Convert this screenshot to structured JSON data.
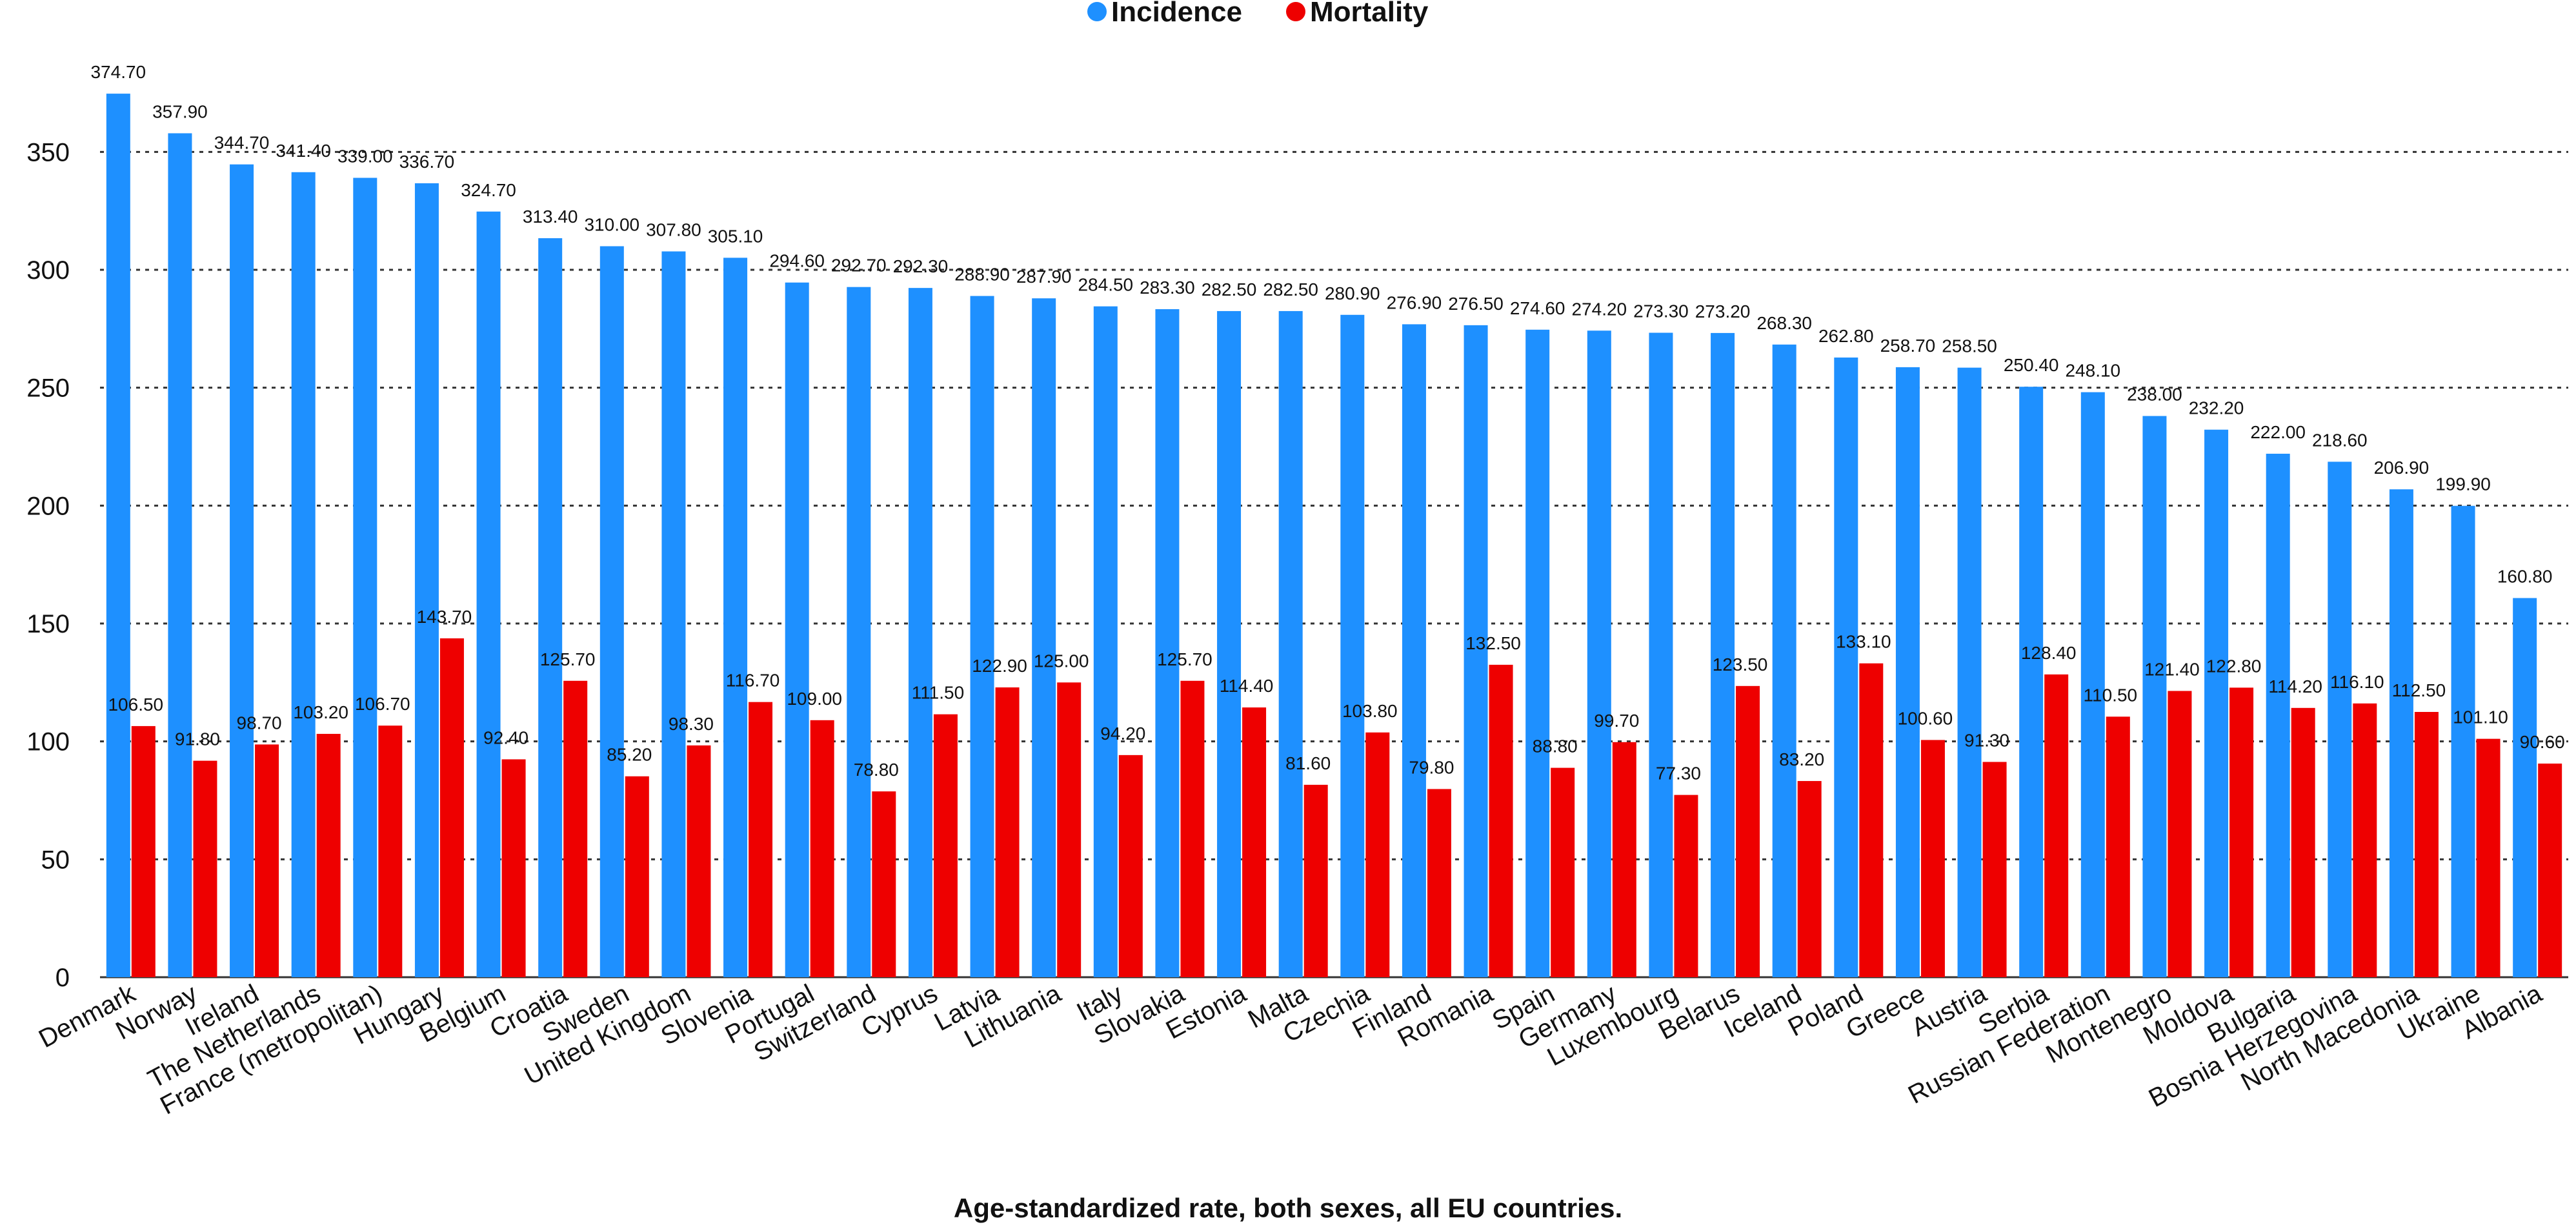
{
  "chart_data": {
    "type": "bar",
    "title": "",
    "caption": "Age-standardized rate, both sexes, all EU countries.",
    "xlabel": "",
    "ylabel": "",
    "ylim": [
      0,
      375
    ],
    "yticks": [
      0,
      50,
      100,
      150,
      200,
      250,
      300,
      350
    ],
    "grid": true,
    "legend_position": "top-center",
    "categories": [
      "Denmark",
      "Norway",
      "Ireland",
      "The Netherlands",
      "France (metropolitan)",
      "Hungary",
      "Belgium",
      "Croatia",
      "Sweden",
      "United Kingdom",
      "Slovenia",
      "Portugal",
      "Switzerland",
      "Cyprus",
      "Latvia",
      "Lithuania",
      "Italy",
      "Slovakia",
      "Estonia",
      "Malta",
      "Czechia",
      "Finland",
      "Romania",
      "Spain",
      "Germany",
      "Luxembourg",
      "Belarus",
      "Iceland",
      "Poland",
      "Greece",
      "Austria",
      "Serbia",
      "Russian Federation",
      "Montenegro",
      "Moldova",
      "Bulgaria",
      "Bosnia Herzegovina",
      "North Macedonia",
      "Ukraine",
      "Albania"
    ],
    "series": [
      {
        "name": "Incidence",
        "color": "#1E90FF",
        "values": [
          374.7,
          357.9,
          344.7,
          341.4,
          339.0,
          336.7,
          324.7,
          313.4,
          310.0,
          307.8,
          305.1,
          294.6,
          292.7,
          292.3,
          288.9,
          287.9,
          284.5,
          283.3,
          282.5,
          282.5,
          280.9,
          276.9,
          276.5,
          274.6,
          274.2,
          273.3,
          273.2,
          268.3,
          262.8,
          258.7,
          258.5,
          250.4,
          248.1,
          238.0,
          232.2,
          222.0,
          218.6,
          206.9,
          199.9,
          160.8
        ],
        "labels": [
          "374.70",
          "357.90",
          "344.70",
          "341.40",
          "339.00",
          "336.70",
          "324.70",
          "313.40",
          "310.00",
          "307.80",
          "305.10",
          "294.60",
          "292.70",
          "292.30",
          "288.90",
          "287.90",
          "284.50",
          "283.30",
          "282.50",
          "282.50",
          "280.90",
          "276.90",
          "276.50",
          "274.60",
          "274.20",
          "273.30",
          "273.20",
          "268.30",
          "262.80",
          "258.70",
          "258.50",
          "250.40",
          "248.10",
          "238.00",
          "232.20",
          "222.00",
          "218.60",
          "206.90",
          "199.90",
          "160.80"
        ]
      },
      {
        "name": "Mortality",
        "color": "#EE0000",
        "values": [
          106.5,
          91.8,
          98.7,
          103.2,
          106.7,
          143.7,
          92.4,
          125.7,
          85.2,
          98.3,
          116.7,
          109.0,
          78.8,
          111.5,
          122.9,
          125.0,
          94.2,
          125.7,
          114.4,
          81.6,
          103.8,
          79.8,
          132.5,
          88.8,
          99.7,
          77.3,
          123.5,
          83.2,
          133.1,
          100.6,
          91.3,
          128.4,
          110.5,
          121.4,
          122.8,
          114.2,
          116.1,
          112.5,
          101.1,
          90.6
        ],
        "labels": [
          "106.50",
          "91.80",
          "98.70",
          "103.20",
          "106.70",
          "143.70",
          "92.40",
          "125.70",
          "85.20",
          "98.30",
          "116.70",
          "109.00",
          "78.80",
          "111.50",
          "122.90",
          "125.00",
          "94.20",
          "125.70",
          "114.40",
          "81.60",
          "103.80",
          "79.80",
          "132.50",
          "88.80",
          "99.70",
          "77.30",
          "123.50",
          "83.20",
          "133.10",
          "100.60",
          "91.30",
          "128.40",
          "110.50",
          "121.40",
          "122.80",
          "114.20",
          "116.10",
          "112.50",
          "101.10",
          "90.60"
        ]
      }
    ]
  }
}
